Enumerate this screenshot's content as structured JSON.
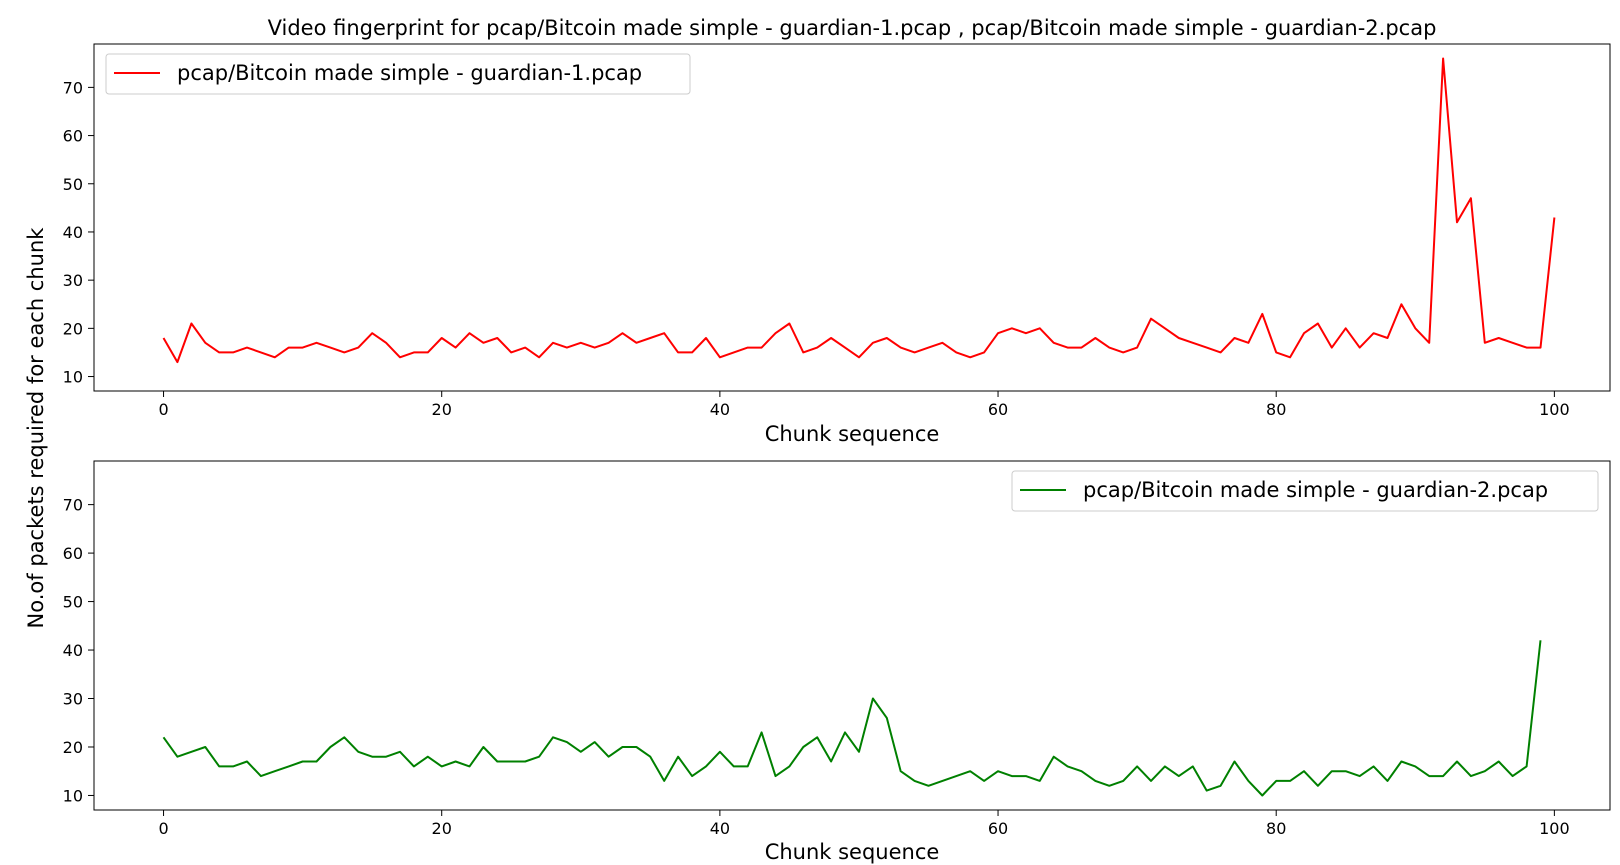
{
  "chart_data": {
    "type": "line",
    "title": "Video fingerprint for pcap/Bitcoin made simple - guardian-1.pcap , pcap/Bitcoin made simple - guardian-2.pcap",
    "ylabel": "No.of packets required for each chunk",
    "subplots": [
      {
        "xlabel": "Chunk sequence",
        "xlim": [
          -5,
          104
        ],
        "ylim": [
          7,
          79
        ],
        "xticks": [
          0,
          20,
          40,
          60,
          80,
          100
        ],
        "yticks": [
          10,
          20,
          30,
          40,
          50,
          60,
          70
        ],
        "legend_position": "top-left",
        "series": [
          {
            "name": "pcap/Bitcoin made simple - guardian-1.pcap",
            "color": "#ff0000",
            "values": [
              18,
              13,
              21,
              17,
              15,
              15,
              16,
              15,
              14,
              16,
              16,
              17,
              16,
              15,
              16,
              19,
              17,
              14,
              15,
              15,
              18,
              16,
              19,
              17,
              18,
              15,
              16,
              14,
              17,
              16,
              17,
              16,
              17,
              19,
              17,
              18,
              19,
              15,
              15,
              18,
              14,
              15,
              16,
              16,
              19,
              21,
              15,
              16,
              18,
              16,
              14,
              17,
              18,
              16,
              15,
              16,
              17,
              15,
              14,
              15,
              19,
              20,
              19,
              20,
              17,
              16,
              16,
              18,
              16,
              15,
              16,
              22,
              20,
              18,
              17,
              16,
              15,
              18,
              17,
              23,
              15,
              14,
              19,
              21,
              16,
              20,
              16,
              19,
              18,
              25,
              20,
              17,
              76,
              42,
              47,
              17,
              18,
              17,
              16,
              16,
              43
            ]
          }
        ]
      },
      {
        "xlabel": "Chunk sequence",
        "xlim": [
          -5,
          104
        ],
        "ylim": [
          7,
          79
        ],
        "xticks": [
          0,
          20,
          40,
          60,
          80,
          100
        ],
        "yticks": [
          10,
          20,
          30,
          40,
          50,
          60,
          70
        ],
        "legend_position": "top-right",
        "series": [
          {
            "name": "pcap/Bitcoin made simple - guardian-2.pcap",
            "color": "#008000",
            "values": [
              22,
              18,
              19,
              20,
              16,
              16,
              17,
              14,
              15,
              16,
              17,
              17,
              20,
              22,
              19,
              18,
              18,
              19,
              16,
              18,
              16,
              17,
              16,
              20,
              17,
              17,
              17,
              18,
              22,
              21,
              19,
              21,
              18,
              20,
              20,
              18,
              13,
              18,
              14,
              16,
              19,
              16,
              16,
              23,
              14,
              16,
              20,
              22,
              17,
              23,
              19,
              30,
              26,
              15,
              13,
              12,
              13,
              14,
              15,
              13,
              15,
              14,
              14,
              13,
              18,
              16,
              15,
              13,
              12,
              13,
              16,
              13,
              16,
              14,
              16,
              11,
              12,
              17,
              13,
              10,
              13,
              13,
              15,
              12,
              15,
              15,
              14,
              16,
              13,
              17,
              16,
              14,
              14,
              17,
              14,
              15,
              17,
              14,
              16,
              42
            ]
          }
        ]
      }
    ]
  }
}
